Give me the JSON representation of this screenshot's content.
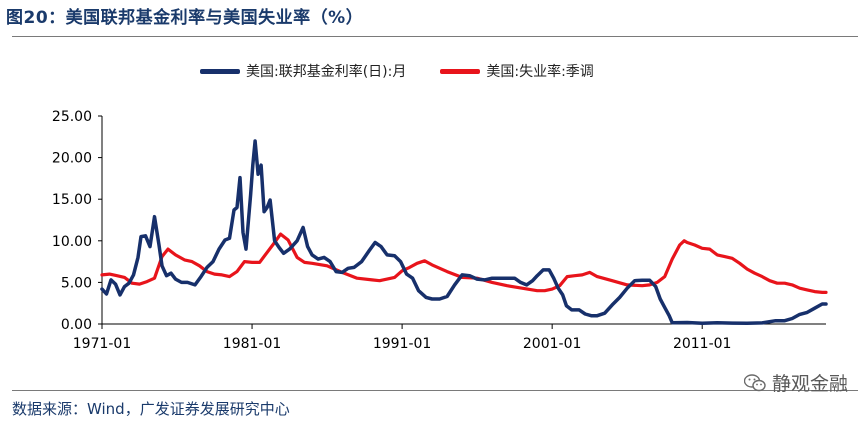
{
  "title": "图20：美国联邦基金利率与美国失业率（%）",
  "source": "数据来源：Wind，广发证券发展研究中心",
  "watermark": "静观金融",
  "colors": {
    "fed_funds": "#17306b",
    "unemployment": "#e8141b",
    "title": "#1a3a6b"
  },
  "chart_data": {
    "type": "line",
    "title": "美国联邦基金利率与美国失业率（%）",
    "xlabel": "",
    "ylabel": "",
    "x_range": [
      1971.0,
      2019.25
    ],
    "ylim": [
      0,
      25
    ],
    "yticks": [
      "25.00",
      "20.00",
      "15.00",
      "10.00",
      "5.00",
      "0.00"
    ],
    "ytick_values": [
      25,
      20,
      15,
      10,
      5,
      0
    ],
    "xticks": [
      "1971-01",
      "1981-01",
      "1991-01",
      "2001-01",
      "2011-01"
    ],
    "xtick_values": [
      1971,
      1981,
      1991,
      2001,
      2011
    ],
    "legend_position": "top",
    "series": [
      {
        "name": "美国:联邦基金利率(日):月",
        "color": "#17306b",
        "x": [
          1971.0,
          1971.3,
          1971.6,
          1971.9,
          1972.2,
          1972.5,
          1972.8,
          1973.1,
          1973.4,
          1973.6,
          1973.9,
          1974.2,
          1974.5,
          1974.8,
          1975.0,
          1975.3,
          1975.6,
          1975.9,
          1976.3,
          1976.7,
          1977.2,
          1977.6,
          1978.0,
          1978.4,
          1978.8,
          1979.2,
          1979.5,
          1979.8,
          1980.0,
          1980.2,
          1980.4,
          1980.6,
          1980.9,
          1981.05,
          1981.2,
          1981.4,
          1981.6,
          1981.8,
          1982.0,
          1982.2,
          1982.5,
          1982.8,
          1983.1,
          1983.5,
          1984.0,
          1984.4,
          1984.7,
          1985.0,
          1985.4,
          1985.8,
          1986.2,
          1986.6,
          1987.0,
          1987.4,
          1987.8,
          1988.3,
          1988.8,
          1989.2,
          1989.6,
          1990.0,
          1990.5,
          1990.9,
          1991.3,
          1991.7,
          1992.1,
          1992.6,
          1993.0,
          1993.5,
          1994.0,
          1994.5,
          1995.0,
          1995.5,
          1996.0,
          1996.5,
          1997.0,
          1997.5,
          1998.0,
          1998.5,
          1998.9,
          1999.3,
          1999.7,
          2000.0,
          2000.4,
          2000.8,
          2001.1,
          2001.4,
          2001.7,
          2001.95,
          2002.3,
          2002.8,
          2003.2,
          2003.6,
          2004.0,
          2004.5,
          2005.0,
          2005.5,
          2006.0,
          2006.5,
          2007.0,
          2007.5,
          2007.9,
          2008.2,
          2008.5,
          2008.8,
          2009.0,
          2010.0,
          2011.0,
          2012.0,
          2013.0,
          2014.0,
          2015.0,
          2015.9,
          2016.5,
          2017.0,
          2017.5,
          2018.0,
          2018.5,
          2019.0,
          2019.25
        ],
        "values": [
          4.2,
          3.6,
          5.3,
          4.8,
          3.5,
          4.5,
          4.9,
          5.9,
          8.0,
          10.5,
          10.6,
          9.3,
          12.9,
          9.5,
          7.0,
          5.8,
          6.1,
          5.4,
          5.0,
          5.0,
          4.7,
          5.7,
          6.8,
          7.5,
          9.0,
          10.1,
          10.3,
          13.7,
          14.0,
          17.6,
          11.0,
          9.0,
          15.5,
          19.1,
          22.0,
          18.0,
          19.1,
          13.5,
          14.0,
          14.9,
          10.0,
          9.2,
          8.5,
          9.0,
          10.0,
          11.6,
          9.3,
          8.3,
          7.8,
          8.0,
          7.5,
          6.3,
          6.2,
          6.7,
          6.8,
          7.5,
          8.8,
          9.8,
          9.3,
          8.3,
          8.2,
          7.5,
          6.0,
          5.5,
          4.0,
          3.2,
          3.0,
          3.0,
          3.3,
          4.7,
          5.9,
          5.8,
          5.4,
          5.3,
          5.5,
          5.5,
          5.5,
          5.5,
          5.0,
          4.7,
          5.2,
          5.8,
          6.5,
          6.5,
          5.5,
          4.3,
          3.5,
          2.2,
          1.7,
          1.7,
          1.2,
          1.0,
          1.0,
          1.3,
          2.3,
          3.2,
          4.3,
          5.2,
          5.25,
          5.25,
          4.5,
          3.0,
          2.0,
          1.0,
          0.16,
          0.18,
          0.1,
          0.14,
          0.11,
          0.09,
          0.13,
          0.4,
          0.4,
          0.66,
          1.15,
          1.4,
          1.9,
          2.4,
          2.4
        ]
      },
      {
        "name": "美国:失业率:季调",
        "color": "#e8141b",
        "x": [
          1971.0,
          1971.5,
          1972.0,
          1972.5,
          1973.0,
          1973.5,
          1974.0,
          1974.5,
          1975.0,
          1975.4,
          1975.9,
          1976.5,
          1977.0,
          1977.5,
          1978.0,
          1978.5,
          1979.0,
          1979.5,
          1980.0,
          1980.5,
          1981.0,
          1981.5,
          1982.0,
          1982.5,
          1982.9,
          1983.4,
          1984.0,
          1984.5,
          1985.0,
          1986.0,
          1987.0,
          1988.0,
          1989.0,
          1989.5,
          1990.0,
          1990.5,
          1991.0,
          1991.5,
          1992.0,
          1992.5,
          1993.0,
          1994.0,
          1995.0,
          1996.0,
          1997.0,
          1998.0,
          1999.0,
          2000.0,
          2000.5,
          2001.0,
          2001.5,
          2002.0,
          2002.5,
          2003.0,
          2003.5,
          2004.0,
          2005.0,
          2006.0,
          2007.0,
          2007.5,
          2008.0,
          2008.5,
          2009.0,
          2009.5,
          2009.8,
          2010.0,
          2010.5,
          2011.0,
          2011.5,
          2012.0,
          2012.5,
          2013.0,
          2013.5,
          2014.0,
          2014.5,
          2015.0,
          2015.5,
          2016.0,
          2016.5,
          2017.0,
          2017.5,
          2018.0,
          2018.5,
          2019.0,
          2019.25
        ],
        "values": [
          5.9,
          6.0,
          5.8,
          5.6,
          4.9,
          4.8,
          5.1,
          5.5,
          8.1,
          9.0,
          8.3,
          7.7,
          7.5,
          7.0,
          6.3,
          6.0,
          5.9,
          5.7,
          6.3,
          7.5,
          7.4,
          7.4,
          8.6,
          9.8,
          10.8,
          10.1,
          8.0,
          7.4,
          7.3,
          7.0,
          6.2,
          5.5,
          5.3,
          5.2,
          5.4,
          5.6,
          6.4,
          6.8,
          7.3,
          7.6,
          7.1,
          6.3,
          5.6,
          5.5,
          5.0,
          4.6,
          4.3,
          4.0,
          4.0,
          4.2,
          4.6,
          5.7,
          5.8,
          5.9,
          6.2,
          5.7,
          5.2,
          4.7,
          4.6,
          4.7,
          5.0,
          5.7,
          7.8,
          9.5,
          10.0,
          9.8,
          9.5,
          9.1,
          9.0,
          8.3,
          8.1,
          7.9,
          7.3,
          6.6,
          6.1,
          5.7,
          5.2,
          4.9,
          4.9,
          4.7,
          4.3,
          4.1,
          3.9,
          3.8,
          3.8
        ]
      }
    ]
  }
}
